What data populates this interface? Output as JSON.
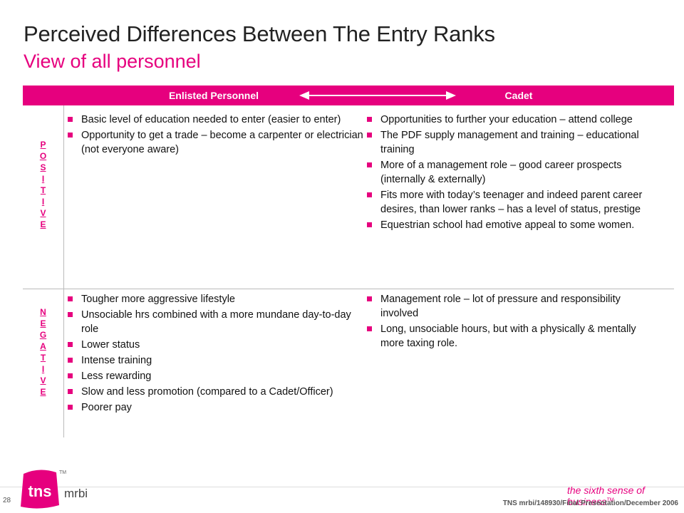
{
  "slide": {
    "title": "Perceived Differences Between The Entry Ranks",
    "subtitle": "View of all personnel"
  },
  "table": {
    "header_left": "Enlisted Personnel",
    "header_right": "Cadet",
    "positive_label": [
      "P",
      "O",
      "S",
      "I",
      "T",
      "I",
      "V",
      "E"
    ],
    "negative_label": [
      "N",
      "E",
      "G",
      "A",
      "T",
      "I",
      "V",
      "E"
    ],
    "positive": {
      "enlisted": [
        "Basic level of education needed to enter (easier to enter)",
        "Opportunity to get a trade – become a carpenter or electrician (not everyone aware)"
      ],
      "cadet": [
        "Opportunities to further your education – attend college",
        "The PDF supply management and training – educational training",
        "More of a management role – good career prospects (internally & externally)",
        "Fits more with today’s teenager and indeed parent career desires, than lower ranks – has a level of status, prestige",
        "Equestrian school had emotive appeal to some women."
      ]
    },
    "negative": {
      "enlisted": [
        "Tougher more aggressive lifestyle",
        "Unsociable hrs combined with a more mundane day-to-day role",
        "Lower status",
        "Intense training",
        "Less rewarding",
        "Slow and less promotion (compared to a Cadet/Officer)",
        "Poorer pay"
      ],
      "cadet": [
        "Management role – lot of pressure and responsibility involved",
        "Long, unsociable hours, but with a physically & mentally more taxing role."
      ]
    }
  },
  "footer": {
    "page_number": "28",
    "logo_text": "tns",
    "logo_suffix": "mrbi",
    "logo_tm": "TM",
    "tagline": "the sixth sense of business",
    "tagline_tm": "TM",
    "reference": "TNS mrbi/148930/Final Presentation/December 2006"
  },
  "colors": {
    "accent": "#e6007e",
    "text": "#111111"
  }
}
